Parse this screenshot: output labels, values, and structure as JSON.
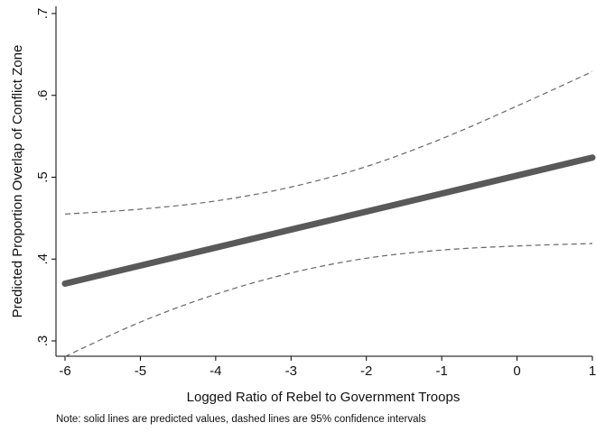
{
  "chart_data": {
    "type": "line",
    "xlabel": "Logged Ratio of Rebel to Government Troops",
    "ylabel": "Predicted Proportion Overlap of Conflict Zone",
    "note": "Note: solid lines are predicted values, dashed lines are 95% confidence intervals",
    "xlim": [
      -6,
      1
    ],
    "ylim": [
      0.3,
      0.7
    ],
    "x_ticks": [
      {
        "value": -6,
        "label": "-6"
      },
      {
        "value": -5,
        "label": "-5"
      },
      {
        "value": -4,
        "label": "-4"
      },
      {
        "value": -3,
        "label": "-3"
      },
      {
        "value": -2,
        "label": "-2"
      },
      {
        "value": -1,
        "label": "-1"
      },
      {
        "value": 0,
        "label": "0"
      },
      {
        "value": 1,
        "label": "1"
      }
    ],
    "y_ticks": [
      {
        "value": 0.3,
        "label": ".3"
      },
      {
        "value": 0.4,
        "label": ".4"
      },
      {
        "value": 0.5,
        "label": ".5"
      },
      {
        "value": 0.6,
        "label": ".6"
      },
      {
        "value": 0.7,
        "label": ".7"
      }
    ],
    "grid": false,
    "x": [
      -6,
      -5,
      -4,
      -3,
      -2,
      -1,
      0,
      1
    ],
    "series": [
      {
        "role": "predicted",
        "style": "solid",
        "color": "#595959",
        "values": [
          0.37,
          0.392,
          0.414,
          0.436,
          0.458,
          0.48,
          0.502,
          0.524
        ]
      },
      {
        "role": "upper",
        "style": "dashed",
        "color": "#666666",
        "values": [
          0.455,
          0.461,
          0.471,
          0.488,
          0.513,
          0.547,
          0.587,
          0.629
        ]
      },
      {
        "role": "lower",
        "style": "dashed",
        "color": "#666666",
        "values": [
          0.281,
          0.323,
          0.357,
          0.383,
          0.401,
          0.411,
          0.416,
          0.419
        ]
      }
    ]
  }
}
